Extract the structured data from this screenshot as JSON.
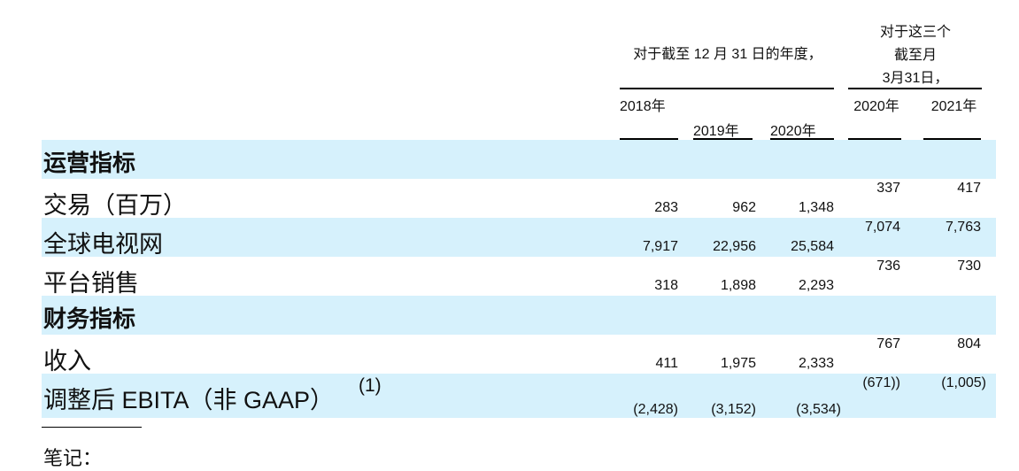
{
  "header": {
    "annual_period": "对于截至 12 月 31 日的年度，",
    "quarter_period": [
      "对于这三个",
      "截至月",
      "3月31日，"
    ],
    "columns": [
      "2018年",
      "2019年",
      "2020年",
      "2020年",
      "2021年"
    ]
  },
  "sections": [
    {
      "title": "运营指标",
      "rows": [
        {
          "label": "交易（百万）",
          "values": [
            "283",
            "962",
            "1,348",
            "337",
            "417"
          ]
        },
        {
          "label": "全球电视网",
          "values": [
            "7,917",
            "22,956",
            "25,584",
            "7,074",
            "7,763"
          ]
        },
        {
          "label": "平台销售",
          "values": [
            "318",
            "1,898",
            "2,293",
            "736",
            "730"
          ]
        }
      ]
    },
    {
      "title": "财务指标",
      "rows": [
        {
          "label": "收入",
          "values": [
            "411",
            "1,975",
            "2,333",
            "767",
            "804"
          ]
        },
        {
          "label": "调整后 EBITA（非 GAAP）",
          "note": "(1)",
          "values": [
            "(2,428)",
            "(3,152)",
            "(3,534)",
            "(671))",
            "(1,005)"
          ]
        }
      ]
    }
  ],
  "footnote": "笔记："
}
